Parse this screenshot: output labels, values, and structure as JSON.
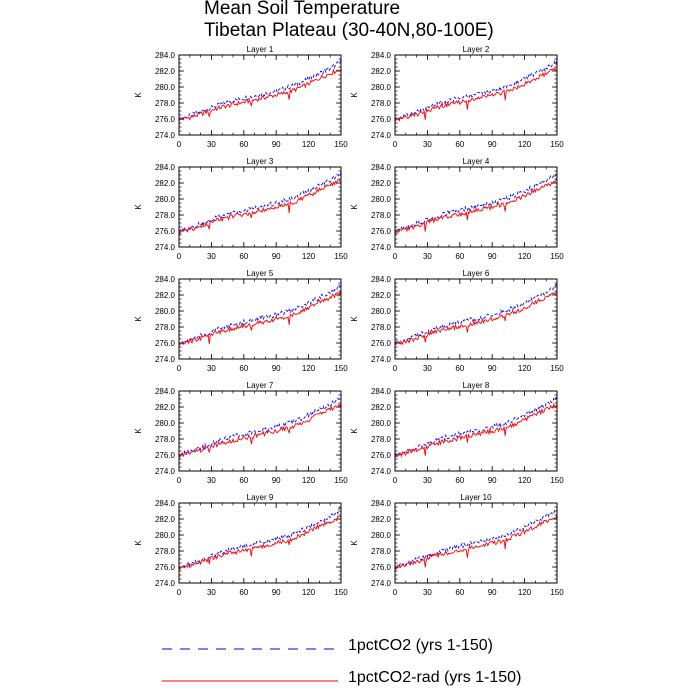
{
  "title": [
    "Mean Soil Temperature",
    "Tibetan Plateau (30-40N,80-100E)"
  ],
  "legend": {
    "entries": [
      {
        "label": "1pctCO2 (yrs 1-150)",
        "color": "#0000ff",
        "dash": "dashed"
      },
      {
        "label": "1pctCO2-rad (yrs 1-150)",
        "color": "#ff0000",
        "dash": "solid"
      }
    ]
  },
  "chart_data": {
    "type": "line",
    "layout": "5 rows x 2 columns panel grid",
    "ylabel": "K",
    "xlim": [
      0,
      150
    ],
    "ylim": [
      274,
      284
    ],
    "xticks": [
      0,
      30,
      60,
      90,
      120,
      150
    ],
    "yticks": [
      274,
      276,
      278,
      280,
      282,
      284
    ],
    "ytick_labels": [
      "274.0",
      "276.0",
      "278.0",
      "280.0",
      "282.0",
      "284.0"
    ],
    "x": [
      0,
      10,
      20,
      30,
      40,
      50,
      60,
      70,
      80,
      90,
      100,
      110,
      120,
      130,
      140,
      150
    ],
    "panels": [
      {
        "title": "Layer 1",
        "series": [
          {
            "name": "1pctCO2 (yrs 1-150)",
            "values": [
              276.0,
              276.4,
              276.9,
              277.4,
              277.9,
              278.3,
              278.6,
              278.9,
              279.2,
              279.5,
              279.9,
              280.4,
              281.0,
              281.7,
              282.3,
              283.2
            ]
          },
          {
            "name": "1pctCO2-rad (yrs 1-150)",
            "values": [
              275.9,
              276.2,
              276.6,
              277.1,
              277.5,
              277.8,
              278.1,
              278.4,
              278.7,
              279.0,
              279.3,
              279.8,
              280.4,
              281.1,
              281.7,
              282.3
            ]
          }
        ]
      },
      {
        "title": "Layer 2",
        "series": [
          {
            "name": "1pctCO2 (yrs 1-150)",
            "values": [
              276.0,
              276.4,
              276.9,
              277.4,
              277.9,
              278.3,
              278.6,
              278.9,
              279.2,
              279.5,
              279.9,
              280.4,
              281.0,
              281.7,
              282.3,
              283.2
            ]
          },
          {
            "name": "1pctCO2-rad (yrs 1-150)",
            "values": [
              275.9,
              276.2,
              276.6,
              277.1,
              277.5,
              277.8,
              278.1,
              278.4,
              278.7,
              279.0,
              279.3,
              279.8,
              280.4,
              281.1,
              281.7,
              282.3
            ]
          }
        ]
      },
      {
        "title": "Layer 3",
        "series": [
          {
            "name": "1pctCO2 (yrs 1-150)",
            "values": [
              276.0,
              276.4,
              276.9,
              277.4,
              277.9,
              278.3,
              278.6,
              278.9,
              279.2,
              279.5,
              279.9,
              280.4,
              281.0,
              281.7,
              282.3,
              283.2
            ]
          },
          {
            "name": "1pctCO2-rad (yrs 1-150)",
            "values": [
              275.9,
              276.2,
              276.6,
              277.1,
              277.5,
              277.8,
              278.1,
              278.4,
              278.7,
              279.0,
              279.3,
              279.8,
              280.4,
              281.1,
              281.7,
              282.3
            ]
          }
        ]
      },
      {
        "title": "Layer 4",
        "series": [
          {
            "name": "1pctCO2 (yrs 1-150)",
            "values": [
              276.0,
              276.4,
              276.9,
              277.4,
              277.9,
              278.3,
              278.6,
              278.9,
              279.2,
              279.5,
              279.9,
              280.4,
              281.0,
              281.7,
              282.3,
              283.2
            ]
          },
          {
            "name": "1pctCO2-rad (yrs 1-150)",
            "values": [
              275.9,
              276.2,
              276.6,
              277.1,
              277.5,
              277.8,
              278.1,
              278.4,
              278.7,
              279.0,
              279.3,
              279.8,
              280.4,
              281.1,
              281.7,
              282.3
            ]
          }
        ]
      },
      {
        "title": "Layer 5",
        "series": [
          {
            "name": "1pctCO2 (yrs 1-150)",
            "values": [
              276.0,
              276.4,
              276.9,
              277.4,
              277.9,
              278.3,
              278.6,
              278.9,
              279.2,
              279.5,
              279.9,
              280.4,
              281.0,
              281.7,
              282.3,
              283.2
            ]
          },
          {
            "name": "1pctCO2-rad (yrs 1-150)",
            "values": [
              275.9,
              276.2,
              276.6,
              277.1,
              277.5,
              277.8,
              278.1,
              278.4,
              278.7,
              279.0,
              279.3,
              279.8,
              280.4,
              281.1,
              281.7,
              282.3
            ]
          }
        ]
      },
      {
        "title": "Layer 6",
        "series": [
          {
            "name": "1pctCO2 (yrs 1-150)",
            "values": [
              276.0,
              276.4,
              276.9,
              277.4,
              277.9,
              278.3,
              278.6,
              278.9,
              279.2,
              279.5,
              279.9,
              280.4,
              281.0,
              281.7,
              282.3,
              283.2
            ]
          },
          {
            "name": "1pctCO2-rad (yrs 1-150)",
            "values": [
              275.9,
              276.2,
              276.6,
              277.1,
              277.5,
              277.8,
              278.1,
              278.4,
              278.7,
              279.0,
              279.3,
              279.8,
              280.4,
              281.1,
              281.7,
              282.3
            ]
          }
        ]
      },
      {
        "title": "Layer 7",
        "series": [
          {
            "name": "1pctCO2 (yrs 1-150)",
            "values": [
              276.0,
              276.4,
              276.9,
              277.4,
              277.9,
              278.3,
              278.6,
              278.9,
              279.2,
              279.5,
              279.9,
              280.4,
              281.0,
              281.7,
              282.3,
              283.2
            ]
          },
          {
            "name": "1pctCO2-rad (yrs 1-150)",
            "values": [
              275.9,
              276.2,
              276.6,
              277.1,
              277.5,
              277.8,
              278.1,
              278.4,
              278.7,
              279.0,
              279.3,
              279.8,
              280.4,
              281.1,
              281.7,
              282.3
            ]
          }
        ]
      },
      {
        "title": "Layer 8",
        "series": [
          {
            "name": "1pctCO2 (yrs 1-150)",
            "values": [
              276.0,
              276.4,
              276.9,
              277.4,
              277.9,
              278.3,
              278.6,
              278.9,
              279.2,
              279.5,
              279.9,
              280.4,
              281.0,
              281.7,
              282.3,
              283.2
            ]
          },
          {
            "name": "1pctCO2-rad (yrs 1-150)",
            "values": [
              275.9,
              276.2,
              276.6,
              277.1,
              277.5,
              277.8,
              278.1,
              278.4,
              278.7,
              279.0,
              279.3,
              279.8,
              280.4,
              281.1,
              281.7,
              282.3
            ]
          }
        ]
      },
      {
        "title": "Layer 9",
        "series": [
          {
            "name": "1pctCO2 (yrs 1-150)",
            "values": [
              276.0,
              276.4,
              276.9,
              277.4,
              277.9,
              278.3,
              278.6,
              278.9,
              279.2,
              279.5,
              279.9,
              280.4,
              281.0,
              281.7,
              282.3,
              283.2
            ]
          },
          {
            "name": "1pctCO2-rad (yrs 1-150)",
            "values": [
              275.9,
              276.2,
              276.6,
              277.1,
              277.5,
              277.8,
              278.1,
              278.4,
              278.7,
              279.0,
              279.3,
              279.8,
              280.4,
              281.1,
              281.7,
              282.3
            ]
          }
        ]
      },
      {
        "title": "Layer 10",
        "series": [
          {
            "name": "1pctCO2 (yrs 1-150)",
            "values": [
              276.0,
              276.4,
              276.9,
              277.4,
              277.9,
              278.3,
              278.6,
              278.9,
              279.2,
              279.5,
              279.9,
              280.4,
              281.0,
              281.7,
              282.3,
              283.2
            ]
          },
          {
            "name": "1pctCO2-rad (yrs 1-150)",
            "values": [
              275.9,
              276.2,
              276.6,
              277.1,
              277.5,
              277.8,
              278.1,
              278.4,
              278.7,
              279.0,
              279.3,
              279.8,
              280.4,
              281.1,
              281.7,
              282.3
            ]
          }
        ]
      }
    ]
  }
}
